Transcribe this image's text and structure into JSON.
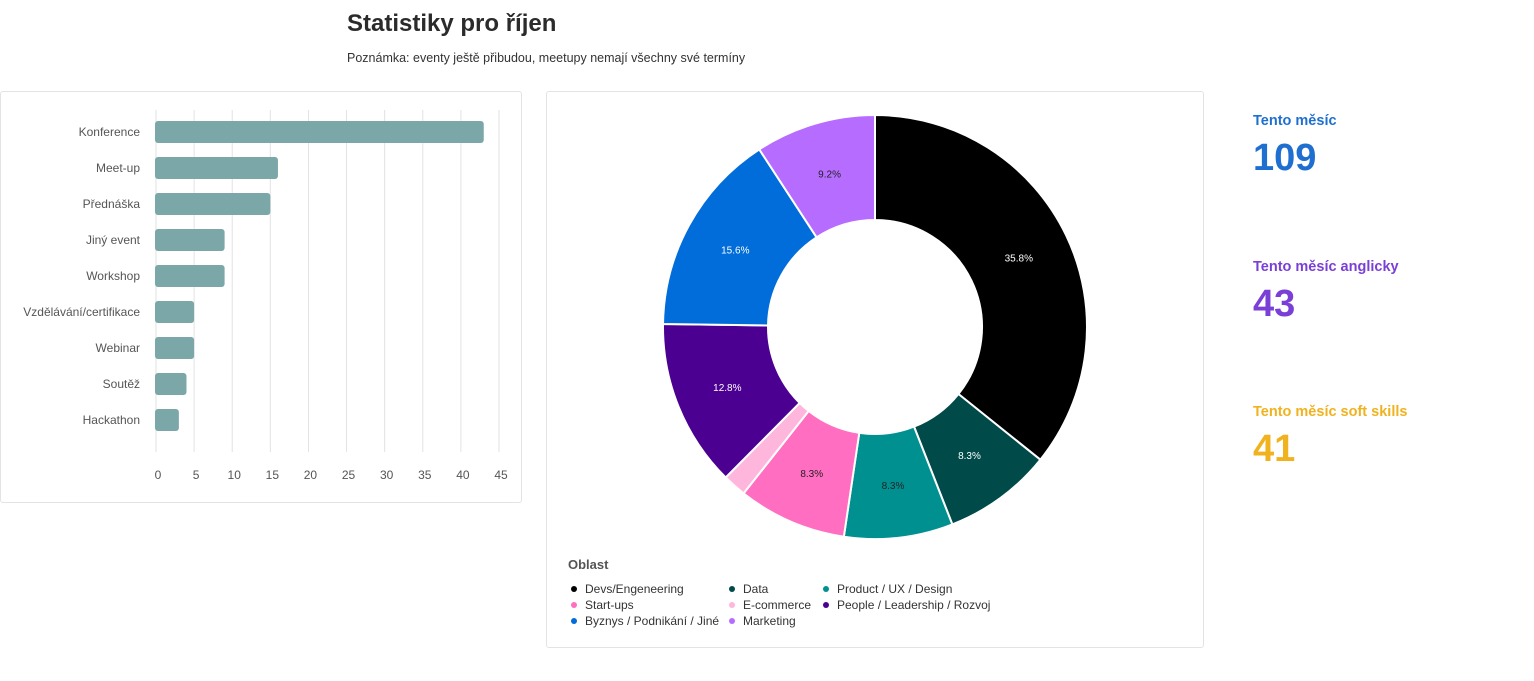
{
  "header": {
    "title": "Statistiky pro říjen",
    "note": "Poznámka: eventy ještě přibudou, meetupy nemají všechny své termíny"
  },
  "chart_data": [
    {
      "type": "bar",
      "orientation": "horizontal",
      "categories": [
        "Konference",
        "Meet-up",
        "Přednáška",
        "Jiný event",
        "Workshop",
        "Vzdělávání/certifikace",
        "Webinar",
        "Soutěž",
        "Hackathon"
      ],
      "values": [
        43,
        16,
        15,
        9,
        9,
        5,
        5,
        4,
        3
      ],
      "xlim": [
        0,
        45
      ],
      "xticks": [
        0,
        5,
        10,
        15,
        20,
        25,
        30,
        35,
        40,
        45
      ],
      "grid": true,
      "color": "#7ca7a8"
    },
    {
      "type": "pie",
      "donut": true,
      "legend_title": "Oblast",
      "legend_position": "bottom-left",
      "slices": [
        {
          "name": "Devs/Engeneering",
          "value": 35.8,
          "label": "35.8%",
          "color": "#000000",
          "label_color": "#ffffff"
        },
        {
          "name": "Data",
          "value": 8.3,
          "label": "8.3%",
          "color": "#004a4a",
          "label_color": "#ffffff"
        },
        {
          "name": "Product / UX / Design",
          "value": 8.3,
          "label": "8.3%",
          "color": "#009090",
          "label_color": "#222222"
        },
        {
          "name": "Start-ups",
          "value": 8.3,
          "label": "8.3%",
          "color": "#ff6ec0",
          "label_color": "#222222"
        },
        {
          "name": "E-commerce",
          "value": 1.8,
          "label": "",
          "color": "#ffb6dc",
          "label_color": "#222222"
        },
        {
          "name": "People / Leadership / Rozvoj",
          "value": 12.8,
          "label": "12.8%",
          "color": "#4b0092",
          "label_color": "#ffffff"
        },
        {
          "name": "Byznys / Podnikání / Jiné",
          "value": 15.6,
          "label": "15.6%",
          "color": "#006ddb",
          "label_color": "#ffffff"
        },
        {
          "name": "Marketing",
          "value": 9.2,
          "label": "9.2%",
          "color": "#b66dff",
          "label_color": "#222222"
        }
      ]
    }
  ],
  "kpis": [
    {
      "label": "Tento měsíc",
      "value": "109",
      "color": "#1f6fd0"
    },
    {
      "label": "Tento měsíc anglicky",
      "value": "43",
      "color": "#7a3fd6"
    },
    {
      "label": "Tento měsíc soft skills",
      "value": "41",
      "color": "#f0b21e"
    }
  ]
}
